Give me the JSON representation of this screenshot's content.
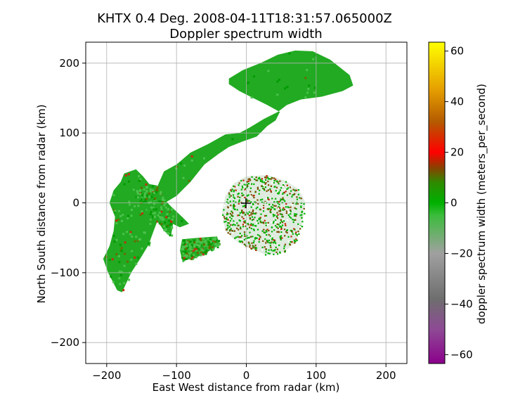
{
  "chart_data": {
    "type": "heatmap",
    "title": "KHTX 0.4 Deg. 2008-04-11T18:31:57.065000Z",
    "subtitle": "Doppler spectrum width",
    "xlabel": "East West distance from radar (km)",
    "ylabel": "North South distance from radar (km)",
    "xlim": [
      -230,
      230
    ],
    "ylim": [
      -230,
      230
    ],
    "xticks": [
      -200,
      -100,
      0,
      100,
      200
    ],
    "yticks": [
      -200,
      -100,
      0,
      100,
      200
    ],
    "xtick_labels": [
      "−200",
      "−100",
      "0",
      "100",
      "200"
    ],
    "ytick_labels": [
      "−200",
      "−100",
      "0",
      "100",
      "200"
    ],
    "grid": true,
    "radar_marker": {
      "x": 0,
      "y": 0,
      "symbol": "+"
    },
    "colorbar": {
      "label": "doppler spectrum width (meters_per_second)",
      "range": [
        -63.5,
        63.5
      ],
      "ticks": [
        -60,
        -40,
        -20,
        0,
        20,
        40,
        60
      ],
      "tick_labels": [
        "−60",
        "−40",
        "−20",
        "0",
        "20",
        "40",
        "60"
      ],
      "colors": [
        {
          "v": -63.5,
          "c": "#8b008b"
        },
        {
          "v": -50,
          "c": "#8e4a95"
        },
        {
          "v": -38,
          "c": "#6e6e6e"
        },
        {
          "v": -20,
          "c": "#a0a0a0"
        },
        {
          "v": -5,
          "c": "#3cbc3c"
        },
        {
          "v": 0,
          "c": "#00b000"
        },
        {
          "v": 8,
          "c": "#2e8b00"
        },
        {
          "v": 14,
          "c": "#8b4000"
        },
        {
          "v": 20,
          "c": "#ff0000"
        },
        {
          "v": 32,
          "c": "#b45a00"
        },
        {
          "v": 45,
          "c": "#e6a000"
        },
        {
          "v": 63.5,
          "c": "#ffff00"
        }
      ]
    },
    "echo_regions": [
      {
        "name": "northeast band",
        "polygon_km": [
          [
            -25,
            178
          ],
          [
            -5,
            190
          ],
          [
            20,
            200
          ],
          [
            45,
            212
          ],
          [
            70,
            218
          ],
          [
            95,
            217
          ],
          [
            120,
            205
          ],
          [
            148,
            183
          ],
          [
            153,
            168
          ],
          [
            138,
            160
          ],
          [
            108,
            152
          ],
          [
            78,
            148
          ],
          [
            58,
            140
          ],
          [
            45,
            130
          ],
          [
            25,
            120
          ],
          [
            5,
            108
          ],
          [
            -10,
            100
          ],
          [
            -30,
            98
          ],
          [
            -55,
            84
          ],
          [
            -80,
            72
          ],
          [
            -100,
            55
          ],
          [
            -118,
            45
          ],
          [
            -128,
            22
          ],
          [
            -140,
            -5
          ],
          [
            -155,
            -20
          ],
          [
            -168,
            -40
          ],
          [
            -175,
            -62
          ],
          [
            -168,
            -75
          ],
          [
            -160,
            -60
          ],
          [
            -150,
            -40
          ],
          [
            -135,
            -18
          ],
          [
            -120,
            -2
          ],
          [
            -100,
            10
          ],
          [
            -80,
            30
          ],
          [
            -60,
            55
          ],
          [
            -40,
            70
          ],
          [
            -25,
            80
          ],
          [
            -5,
            88
          ],
          [
            15,
            95
          ],
          [
            30,
            110
          ],
          [
            42,
            118
          ],
          [
            48,
            130
          ],
          [
            30,
            140
          ],
          [
            10,
            150
          ],
          [
            -10,
            160
          ],
          [
            -25,
            170
          ]
        ],
        "value": 0
      },
      {
        "name": "southwest band",
        "polygon_km": [
          [
            -175,
            42
          ],
          [
            -158,
            48
          ],
          [
            -148,
            38
          ],
          [
            -135,
            22
          ],
          [
            -122,
            10
          ],
          [
            -108,
            -5
          ],
          [
            -92,
            -20
          ],
          [
            -82,
            -30
          ],
          [
            -95,
            -35
          ],
          [
            -110,
            -28
          ],
          [
            -125,
            -20
          ],
          [
            -132,
            -38
          ],
          [
            -140,
            -60
          ],
          [
            -152,
            -80
          ],
          [
            -165,
            -100
          ],
          [
            -178,
            -128
          ],
          [
            -185,
            -125
          ],
          [
            -198,
            -100
          ],
          [
            -205,
            -80
          ],
          [
            -196,
            -62
          ],
          [
            -190,
            -40
          ],
          [
            -188,
            -20
          ],
          [
            -196,
            0
          ],
          [
            -190,
            18
          ],
          [
            -180,
            30
          ]
        ],
        "value": 0
      },
      {
        "name": "west lobe",
        "polygon_km": [
          [
            -160,
            20
          ],
          [
            -145,
            28
          ],
          [
            -128,
            25
          ],
          [
            -118,
            10
          ],
          [
            -112,
            -8
          ],
          [
            -105,
            -30
          ],
          [
            -108,
            -48
          ],
          [
            -118,
            -40
          ],
          [
            -128,
            -25
          ],
          [
            -140,
            -12
          ],
          [
            -150,
            0
          ],
          [
            -158,
            10
          ]
        ],
        "value": 0
      },
      {
        "name": "south small",
        "polygon_km": [
          [
            -92,
            -52
          ],
          [
            -70,
            -50
          ],
          [
            -42,
            -48
          ],
          [
            -38,
            -60
          ],
          [
            -55,
            -70
          ],
          [
            -75,
            -80
          ],
          [
            -92,
            -82
          ],
          [
            -95,
            -68
          ]
        ],
        "value": 0
      },
      {
        "name": "clutter ring",
        "polygon_km": [
          [
            0,
            38
          ],
          [
            30,
            40
          ],
          [
            55,
            32
          ],
          [
            75,
            20
          ],
          [
            85,
            0
          ],
          [
            80,
            -30
          ],
          [
            72,
            -55
          ],
          [
            55,
            -70
          ],
          [
            30,
            -75
          ],
          [
            5,
            -65
          ],
          [
            -15,
            -55
          ],
          [
            -30,
            -40
          ],
          [
            -35,
            -15
          ],
          [
            -30,
            10
          ],
          [
            -18,
            28
          ]
        ],
        "value": 0
      }
    ]
  }
}
